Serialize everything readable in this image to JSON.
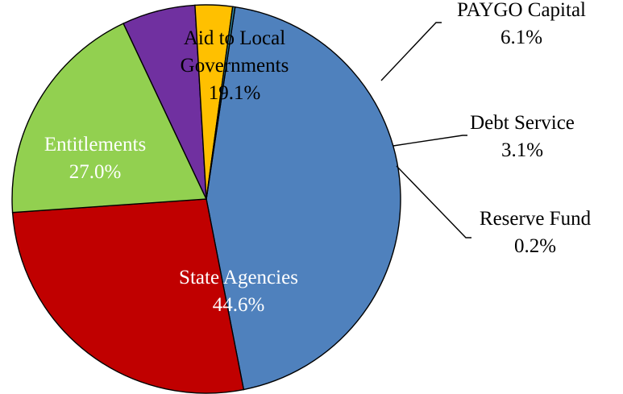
{
  "chart_data": {
    "type": "pie",
    "title": "",
    "categories": [
      "State Agencies",
      "Entitlements",
      "Aid to Local Governments",
      "PAYGO Capital",
      "Debt Service",
      "Reserve Fund"
    ],
    "values": [
      44.6,
      27.0,
      19.1,
      6.1,
      3.1,
      0.2
    ],
    "value_labels": [
      "44.6%",
      "27.0%",
      "19.1%",
      "6.1%",
      "3.1%",
      "0.2%"
    ],
    "colors": [
      "#4F81BD",
      "#C00000",
      "#92D050",
      "#7030A0",
      "#FFC000",
      "#31859C"
    ],
    "label_colors": [
      "#ffffff",
      "#ffffff",
      "#000000",
      "#000000",
      "#000000",
      "#000000"
    ],
    "label_placement": [
      "inside",
      "inside",
      "inside",
      "outside",
      "outside",
      "outside"
    ],
    "label_lines": [
      [
        "State Agencies"
      ],
      [
        "Entitlements"
      ],
      [
        "Aid to Local",
        "Governments"
      ],
      [
        "PAYGO Capital"
      ],
      [
        "Debt Service"
      ],
      [
        "Reserve Fund"
      ]
    ],
    "legend": "none"
  }
}
